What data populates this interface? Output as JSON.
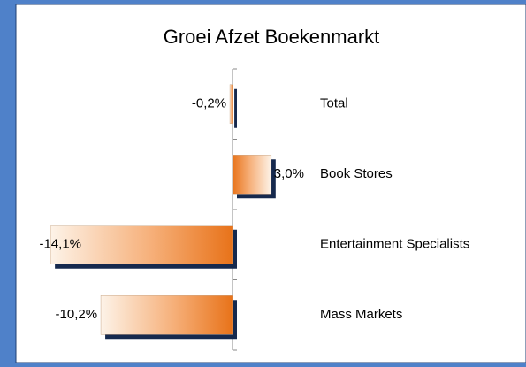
{
  "chart_data": {
    "type": "bar",
    "orientation": "horizontal",
    "title": "Groei Afzet Boekenmarkt",
    "categories": [
      "Total",
      "Book Stores",
      "Entertainment Specialists",
      "Mass Markets"
    ],
    "values": [
      -0.2,
      3.0,
      -14.1,
      -10.2
    ],
    "value_labels": [
      "-0,2%",
      "3,0%",
      "-14,1%",
      "-10,2%"
    ],
    "color": "#e8731a"
  }
}
